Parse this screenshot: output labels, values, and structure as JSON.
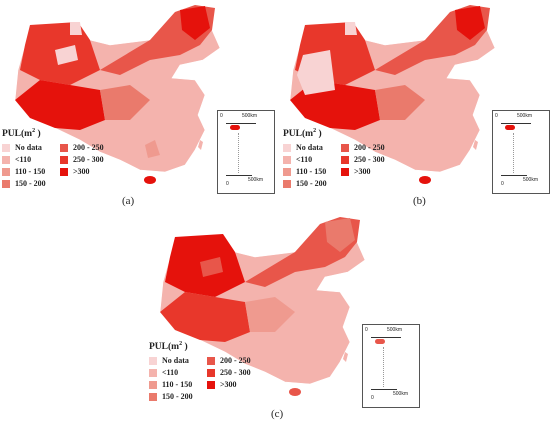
{
  "legend": {
    "title": "PUL(m",
    "title_sup": "2",
    "title_end": " )",
    "items": [
      {
        "label": "No data",
        "color": "#f8d3d3"
      },
      {
        "label": "<110",
        "color": "#f4b3ad"
      },
      {
        "label": "110 - 150",
        "color": "#ef9a8f"
      },
      {
        "label": "150 - 200",
        "color": "#ea7a6c"
      },
      {
        "label": "200 - 250",
        "color": "#e8564a"
      },
      {
        "label": "250 - 300",
        "color": "#e8372b"
      },
      {
        "label": ">300",
        "color": "#e5120c"
      }
    ]
  },
  "inset": {
    "scale_top": "500km",
    "scale_bottom": "500km",
    "zero_top": "0",
    "zero_bottom": "0"
  },
  "panels": [
    {
      "caption": "(a)"
    },
    {
      "caption": "(b)"
    },
    {
      "caption": "(c)"
    }
  ]
}
